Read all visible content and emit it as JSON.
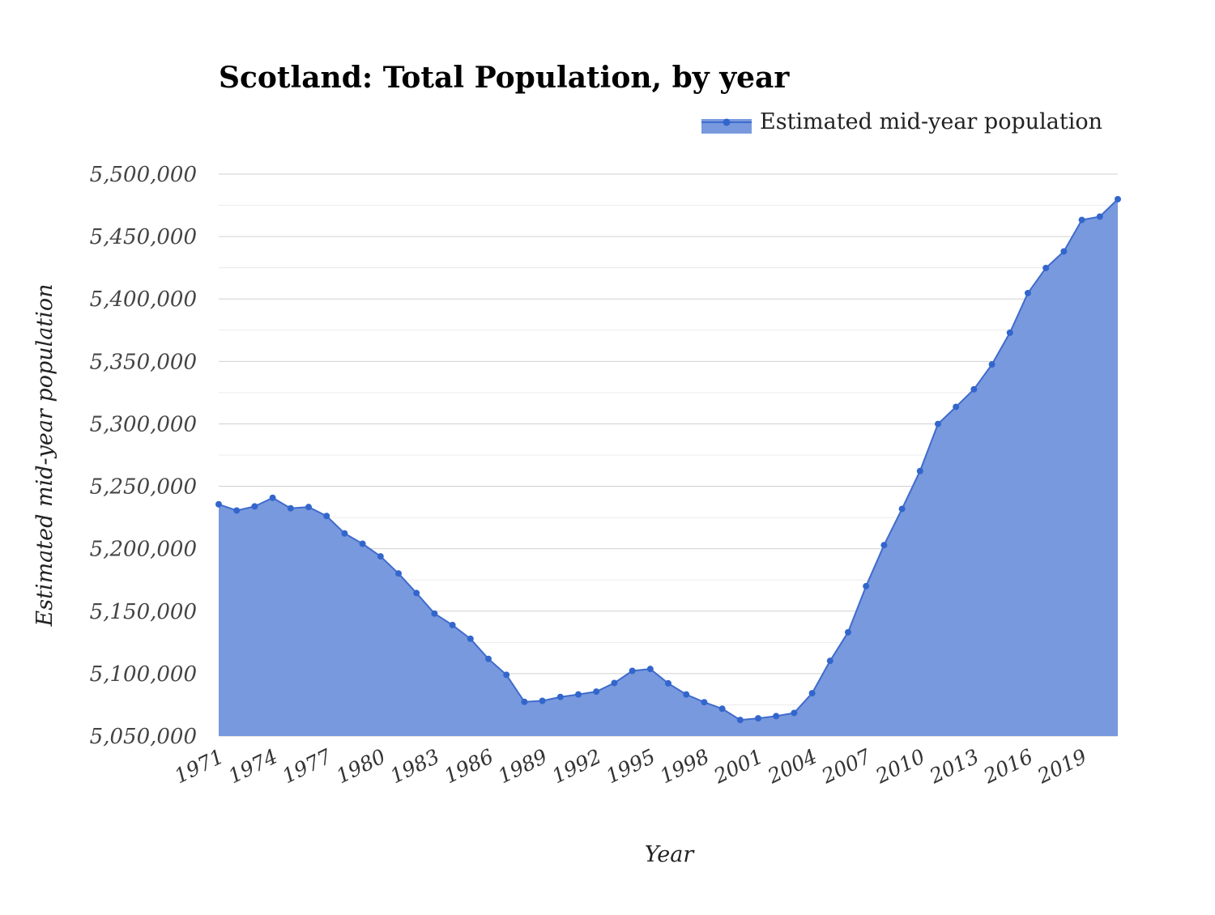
{
  "chart_data": {
    "type": "area",
    "title": "Scotland: Total Population, by year",
    "xlabel": "Year",
    "ylabel": "Estimated mid-year population",
    "ylim": [
      5050000,
      5500000
    ],
    "legend_position": "top-right",
    "grid": true,
    "colors": {
      "fill": "#7899dd",
      "line": "#3f6bcd",
      "marker": "#3366cc",
      "grid": "#d0d0d0"
    },
    "y_ticks": [
      "5,050,000",
      "5,100,000",
      "5,150,000",
      "5,200,000",
      "5,250,000",
      "5,300,000",
      "5,350,000",
      "5,400,000",
      "5,450,000",
      "5,500,000"
    ],
    "x_ticks": [
      "1971",
      "1974",
      "1977",
      "1980",
      "1983",
      "1986",
      "1989",
      "1992",
      "1995",
      "1998",
      "2001",
      "2004",
      "2007",
      "2010",
      "2013",
      "2016",
      "2019"
    ],
    "series": [
      {
        "name": "Estimated mid-year population",
        "x": [
          1971,
          1972,
          1973,
          1974,
          1975,
          1976,
          1977,
          1978,
          1979,
          1980,
          1981,
          1982,
          1983,
          1984,
          1985,
          1986,
          1987,
          1988,
          1989,
          1990,
          1991,
          1992,
          1993,
          1994,
          1995,
          1996,
          1997,
          1998,
          1999,
          2000,
          2001,
          2002,
          2003,
          2004,
          2005,
          2006,
          2007,
          2008,
          2009,
          2010,
          2011,
          2012,
          2013,
          2014,
          2015,
          2016,
          2017,
          2018,
          2019,
          2020,
          2021
        ],
        "values": [
          5235600,
          5230600,
          5233900,
          5240800,
          5232400,
          5233400,
          5226200,
          5212300,
          5204000,
          5193900,
          5180200,
          5164500,
          5148100,
          5138900,
          5127900,
          5111800,
          5099000,
          5077400,
          5078200,
          5081300,
          5083300,
          5085600,
          5092500,
          5102200,
          5103700,
          5092200,
          5083300,
          5077100,
          5071900,
          5062900,
          5064200,
          5066000,
          5068500,
          5084300,
          5110200,
          5133100,
          5170000,
          5202900,
          5231900,
          5262200,
          5299900,
          5313600,
          5327700,
          5347600,
          5373000,
          5404700,
          5424800,
          5438100,
          5463300,
          5466000,
          5479900
        ]
      }
    ]
  }
}
